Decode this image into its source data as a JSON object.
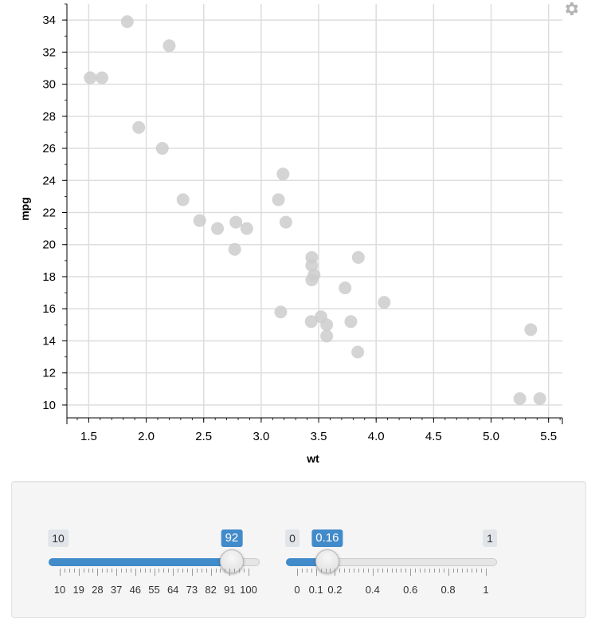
{
  "chart_data": {
    "type": "scatter",
    "xlabel": "wt",
    "ylabel": "mpg",
    "xlim": [
      1.31,
      5.62
    ],
    "ylim": [
      9.2,
      35
    ],
    "x_ticks": [
      "1.5",
      "2.0",
      "2.5",
      "3.0",
      "3.5",
      "4.0",
      "4.5",
      "5.0",
      "5.5"
    ],
    "y_ticks": [
      "10",
      "12",
      "14",
      "16",
      "18",
      "20",
      "22",
      "24",
      "26",
      "28",
      "30",
      "32",
      "34"
    ],
    "grid": true,
    "point_color": "#cccccc",
    "x": [
      1.513,
      1.615,
      1.835,
      1.935,
      2.14,
      2.2,
      2.32,
      2.465,
      2.62,
      2.77,
      2.78,
      2.875,
      3.15,
      3.17,
      3.19,
      3.215,
      3.435,
      3.44,
      3.44,
      3.44,
      3.46,
      3.52,
      3.57,
      3.57,
      3.73,
      3.78,
      3.84,
      3.845,
      4.07,
      5.25,
      5.345,
      5.424
    ],
    "y": [
      30.4,
      30.4,
      33.9,
      27.3,
      26.0,
      32.4,
      22.8,
      21.5,
      21.0,
      19.7,
      21.4,
      21.0,
      22.8,
      15.8,
      24.4,
      21.4,
      15.2,
      17.8,
      18.7,
      19.2,
      18.1,
      15.5,
      15.0,
      14.3,
      17.3,
      15.2,
      13.3,
      19.2,
      16.4,
      10.4,
      14.7,
      10.4
    ]
  },
  "settings_icon": "gear-icon",
  "sliders": [
    {
      "name": "opacity",
      "min_label": "10",
      "value": 92,
      "value_label": "92",
      "min": 10,
      "max": 100,
      "tick_labels": [
        "10",
        "19",
        "28",
        "37",
        "46",
        "55",
        "64",
        "73",
        "82",
        "91",
        "100"
      ],
      "show_max_bubble": false
    },
    {
      "name": "size",
      "min_label": "0",
      "max_label": "1",
      "value": 0.16,
      "value_label": "0.16",
      "min": 0,
      "max": 1,
      "tick_labels": [
        "0",
        "0.1",
        "0.2",
        "0.4",
        "0.6",
        "0.8",
        "1"
      ],
      "show_max_bubble": true
    }
  ],
  "colors": {
    "accent": "#428bca",
    "grid": "#dddddd"
  }
}
